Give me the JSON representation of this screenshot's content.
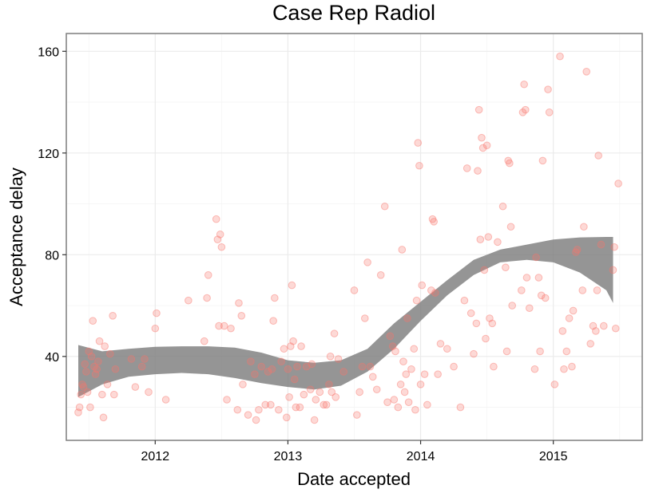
{
  "colors": {
    "point": "#f8766d",
    "ribbon": "#7a7a7a",
    "grid_major": "#ebebeb",
    "grid_minor": "#f5f5f5",
    "frame": "#7f7f7f"
  },
  "chart_data": {
    "type": "scatter",
    "title": "Case Rep Radiol",
    "xlabel": "Date accepted",
    "ylabel": "Acceptance delay",
    "xlim": [
      2011.33,
      2015.67
    ],
    "ylim": [
      7,
      167
    ],
    "x_ticks": [
      2012,
      2013,
      2014,
      2015
    ],
    "x_tick_labels": [
      "2012",
      "2013",
      "2014",
      "2015"
    ],
    "y_ticks": [
      40,
      80,
      120,
      160
    ],
    "y_tick_labels": [
      "40",
      "80",
      "120",
      "160"
    ],
    "grid": true,
    "legend": false,
    "series": [
      {
        "points": [
          [
            2011.42,
            18
          ],
          [
            2011.43,
            20
          ],
          [
            2011.44,
            25
          ],
          [
            2011.45,
            29
          ],
          [
            2011.46,
            28
          ],
          [
            2011.47,
            37
          ],
          [
            2011.48,
            34
          ],
          [
            2011.49,
            26
          ],
          [
            2011.5,
            42
          ],
          [
            2011.51,
            20
          ],
          [
            2011.52,
            40
          ],
          [
            2011.53,
            54
          ],
          [
            2011.54,
            36
          ],
          [
            2011.55,
            33
          ],
          [
            2011.56,
            35
          ],
          [
            2011.57,
            38
          ],
          [
            2011.58,
            46
          ],
          [
            2011.6,
            25
          ],
          [
            2011.61,
            16
          ],
          [
            2011.62,
            44
          ],
          [
            2011.64,
            29
          ],
          [
            2011.66,
            41
          ],
          [
            2011.68,
            56
          ],
          [
            2011.69,
            25
          ],
          [
            2011.7,
            35
          ],
          [
            2011.82,
            39
          ],
          [
            2011.85,
            28
          ],
          [
            2011.9,
            36
          ],
          [
            2011.92,
            39
          ],
          [
            2011.95,
            26
          ],
          [
            2012.0,
            51
          ],
          [
            2012.01,
            57
          ],
          [
            2012.08,
            23
          ],
          [
            2012.25,
            62
          ],
          [
            2012.37,
            46
          ],
          [
            2012.39,
            63
          ],
          [
            2012.4,
            72
          ],
          [
            2012.46,
            94
          ],
          [
            2012.47,
            86
          ],
          [
            2012.48,
            52
          ],
          [
            2012.49,
            88
          ],
          [
            2012.5,
            83
          ],
          [
            2012.52,
            52
          ],
          [
            2012.54,
            23
          ],
          [
            2012.57,
            51
          ],
          [
            2012.62,
            19
          ],
          [
            2012.63,
            61
          ],
          [
            2012.65,
            56
          ],
          [
            2012.66,
            29
          ],
          [
            2012.7,
            17
          ],
          [
            2012.72,
            38
          ],
          [
            2012.75,
            33
          ],
          [
            2012.76,
            15
          ],
          [
            2012.78,
            19
          ],
          [
            2012.8,
            36
          ],
          [
            2012.83,
            21
          ],
          [
            2012.85,
            34
          ],
          [
            2012.87,
            21
          ],
          [
            2012.88,
            35
          ],
          [
            2012.89,
            54
          ],
          [
            2012.9,
            63
          ],
          [
            2012.93,
            19
          ],
          [
            2012.95,
            38
          ],
          [
            2012.97,
            43
          ],
          [
            2012.99,
            16
          ],
          [
            2013.0,
            35
          ],
          [
            2013.01,
            24
          ],
          [
            2013.02,
            44
          ],
          [
            2013.03,
            68
          ],
          [
            2013.04,
            46
          ],
          [
            2013.05,
            31
          ],
          [
            2013.06,
            20
          ],
          [
            2013.07,
            36
          ],
          [
            2013.09,
            20
          ],
          [
            2013.1,
            44
          ],
          [
            2013.12,
            25
          ],
          [
            2013.14,
            36
          ],
          [
            2013.17,
            27
          ],
          [
            2013.18,
            37
          ],
          [
            2013.2,
            15
          ],
          [
            2013.21,
            23
          ],
          [
            2013.24,
            26
          ],
          [
            2013.27,
            21
          ],
          [
            2013.29,
            21
          ],
          [
            2013.31,
            29
          ],
          [
            2013.32,
            40
          ],
          [
            2013.33,
            26
          ],
          [
            2013.35,
            49
          ],
          [
            2013.36,
            24
          ],
          [
            2013.38,
            39
          ],
          [
            2013.42,
            34
          ],
          [
            2013.5,
            66
          ],
          [
            2013.52,
            17
          ],
          [
            2013.54,
            26
          ],
          [
            2013.56,
            36
          ],
          [
            2013.58,
            55
          ],
          [
            2013.6,
            77
          ],
          [
            2013.62,
            36
          ],
          [
            2013.64,
            32
          ],
          [
            2013.67,
            27
          ],
          [
            2013.7,
            72
          ],
          [
            2013.73,
            99
          ],
          [
            2013.75,
            22
          ],
          [
            2013.77,
            48
          ],
          [
            2013.79,
            44
          ],
          [
            2013.8,
            23
          ],
          [
            2013.81,
            42
          ],
          [
            2013.83,
            20
          ],
          [
            2013.85,
            29
          ],
          [
            2013.86,
            82
          ],
          [
            2013.87,
            38
          ],
          [
            2013.88,
            26
          ],
          [
            2013.89,
            33
          ],
          [
            2013.9,
            55
          ],
          [
            2013.91,
            22
          ],
          [
            2013.93,
            35
          ],
          [
            2013.95,
            43
          ],
          [
            2013.96,
            19
          ],
          [
            2013.97,
            62
          ],
          [
            2013.98,
            124
          ],
          [
            2013.99,
            115
          ],
          [
            2014.0,
            29
          ],
          [
            2014.01,
            68
          ],
          [
            2014.03,
            33
          ],
          [
            2014.05,
            21
          ],
          [
            2014.08,
            66
          ],
          [
            2014.09,
            94
          ],
          [
            2014.1,
            93
          ],
          [
            2014.11,
            65
          ],
          [
            2014.13,
            33
          ],
          [
            2014.15,
            45
          ],
          [
            2014.2,
            43
          ],
          [
            2014.25,
            36
          ],
          [
            2014.3,
            20
          ],
          [
            2014.33,
            62
          ],
          [
            2014.35,
            114
          ],
          [
            2014.38,
            57
          ],
          [
            2014.4,
            41
          ],
          [
            2014.42,
            53
          ],
          [
            2014.43,
            113
          ],
          [
            2014.44,
            137
          ],
          [
            2014.45,
            86
          ],
          [
            2014.46,
            126
          ],
          [
            2014.47,
            122
          ],
          [
            2014.48,
            74
          ],
          [
            2014.49,
            47
          ],
          [
            2014.5,
            123
          ],
          [
            2014.51,
            87
          ],
          [
            2014.52,
            55
          ],
          [
            2014.54,
            53
          ],
          [
            2014.55,
            36
          ],
          [
            2014.58,
            85
          ],
          [
            2014.62,
            99
          ],
          [
            2014.64,
            75
          ],
          [
            2014.65,
            42
          ],
          [
            2014.66,
            117
          ],
          [
            2014.67,
            116
          ],
          [
            2014.68,
            91
          ],
          [
            2014.69,
            60
          ],
          [
            2014.76,
            66
          ],
          [
            2014.77,
            136
          ],
          [
            2014.78,
            147
          ],
          [
            2014.79,
            137
          ],
          [
            2014.8,
            71
          ],
          [
            2014.82,
            59
          ],
          [
            2014.86,
            35
          ],
          [
            2014.87,
            79
          ],
          [
            2014.89,
            71
          ],
          [
            2014.9,
            42
          ],
          [
            2014.91,
            64
          ],
          [
            2014.92,
            117
          ],
          [
            2014.94,
            63
          ],
          [
            2014.96,
            145
          ],
          [
            2014.97,
            136
          ],
          [
            2015.01,
            29
          ],
          [
            2015.05,
            158
          ],
          [
            2015.07,
            50
          ],
          [
            2015.08,
            35
          ],
          [
            2015.1,
            42
          ],
          [
            2015.12,
            55
          ],
          [
            2015.14,
            36
          ],
          [
            2015.15,
            58
          ],
          [
            2015.17,
            81
          ],
          [
            2015.18,
            82
          ],
          [
            2015.22,
            66
          ],
          [
            2015.23,
            91
          ],
          [
            2015.25,
            152
          ],
          [
            2015.28,
            45
          ],
          [
            2015.3,
            52
          ],
          [
            2015.32,
            50
          ],
          [
            2015.33,
            66
          ],
          [
            2015.34,
            119
          ],
          [
            2015.36,
            84
          ],
          [
            2015.38,
            52
          ],
          [
            2015.45,
            74
          ],
          [
            2015.46,
            83
          ],
          [
            2015.47,
            51
          ],
          [
            2015.49,
            108
          ]
        ]
      }
    ],
    "smooth_band": {
      "x": [
        2011.42,
        2011.6,
        2011.8,
        2012.0,
        2012.2,
        2012.4,
        2012.6,
        2012.8,
        2013.0,
        2013.2,
        2013.4,
        2013.6,
        2013.8,
        2014.0,
        2014.2,
        2014.4,
        2014.6,
        2014.8,
        2015.0,
        2015.2,
        2015.4,
        2015.45
      ],
      "lower": [
        24,
        29,
        32,
        33,
        33.5,
        33,
        31.5,
        29.5,
        28,
        27,
        28.5,
        34,
        43,
        54,
        64,
        72,
        77,
        78,
        77,
        73,
        66,
        61
      ],
      "upper": [
        44.5,
        42,
        43,
        43.8,
        44,
        44,
        43.5,
        41.5,
        38.5,
        37.5,
        38.5,
        43,
        53,
        61.5,
        70,
        78,
        82,
        84,
        86,
        86.8,
        87,
        87
      ]
    }
  }
}
